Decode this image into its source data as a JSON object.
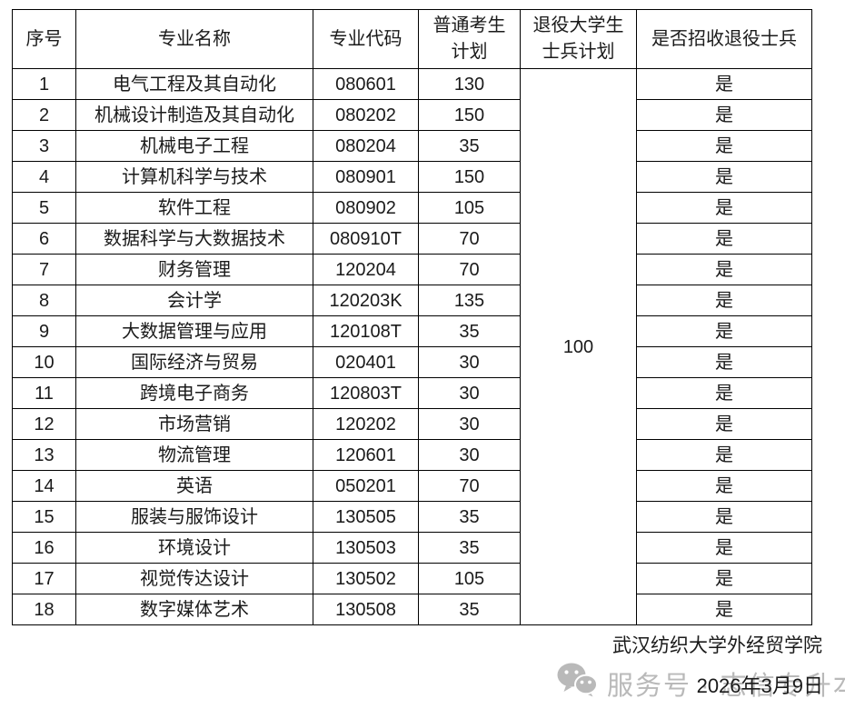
{
  "table": {
    "headers": {
      "no": "序号",
      "major_name": "专业名称",
      "major_code": "专业代码",
      "regular_plan": "普通考生\n计划",
      "veteran_plan": "退役大学生\n士兵计划",
      "recruit_veterans": "是否招收退役士兵"
    },
    "merged_veteran_plan": "100",
    "rows": [
      {
        "no": "1",
        "name": "电气工程及其自动化",
        "code": "080601",
        "plan": "130",
        "recruit": "是"
      },
      {
        "no": "2",
        "name": "机械设计制造及其自动化",
        "code": "080202",
        "plan": "150",
        "recruit": "是"
      },
      {
        "no": "3",
        "name": "机械电子工程",
        "code": "080204",
        "plan": "35",
        "recruit": "是"
      },
      {
        "no": "4",
        "name": "计算机科学与技术",
        "code": "080901",
        "plan": "150",
        "recruit": "是"
      },
      {
        "no": "5",
        "name": "软件工程",
        "code": "080902",
        "plan": "105",
        "recruit": "是"
      },
      {
        "no": "6",
        "name": "数据科学与大数据技术",
        "code": "080910T",
        "plan": "70",
        "recruit": "是"
      },
      {
        "no": "7",
        "name": "财务管理",
        "code": "120204",
        "plan": "70",
        "recruit": "是"
      },
      {
        "no": "8",
        "name": "会计学",
        "code": "120203K",
        "plan": "135",
        "recruit": "是"
      },
      {
        "no": "9",
        "name": "大数据管理与应用",
        "code": "120108T",
        "plan": "35",
        "recruit": "是"
      },
      {
        "no": "10",
        "name": "国际经济与贸易",
        "code": "020401",
        "plan": "30",
        "recruit": "是"
      },
      {
        "no": "11",
        "name": "跨境电子商务",
        "code": "120803T",
        "plan": "30",
        "recruit": "是"
      },
      {
        "no": "12",
        "name": "市场营销",
        "code": "120202",
        "plan": "30",
        "recruit": "是"
      },
      {
        "no": "13",
        "name": "物流管理",
        "code": "120601",
        "plan": "30",
        "recruit": "是"
      },
      {
        "no": "14",
        "name": "英语",
        "code": "050201",
        "plan": "70",
        "recruit": "是"
      },
      {
        "no": "15",
        "name": "服装与服饰设计",
        "code": "130505",
        "plan": "35",
        "recruit": "是"
      },
      {
        "no": "16",
        "name": "环境设计",
        "code": "130503",
        "plan": "35",
        "recruit": "是"
      },
      {
        "no": "17",
        "name": "视觉传达设计",
        "code": "130502",
        "plan": "105",
        "recruit": "是"
      },
      {
        "no": "18",
        "name": "数字媒体艺术",
        "code": "130508",
        "plan": "35",
        "recruit": "是"
      }
    ]
  },
  "footer": {
    "org": "武汉纺织大学外经贸学院",
    "date": "2026年3月9日"
  },
  "watermark": {
    "icon": "wechat-icon",
    "label": "服务号 · 志信专升本"
  },
  "colors": {
    "border": "#000000",
    "text": "#1a1a1a",
    "watermark": "#b9b9b9"
  }
}
